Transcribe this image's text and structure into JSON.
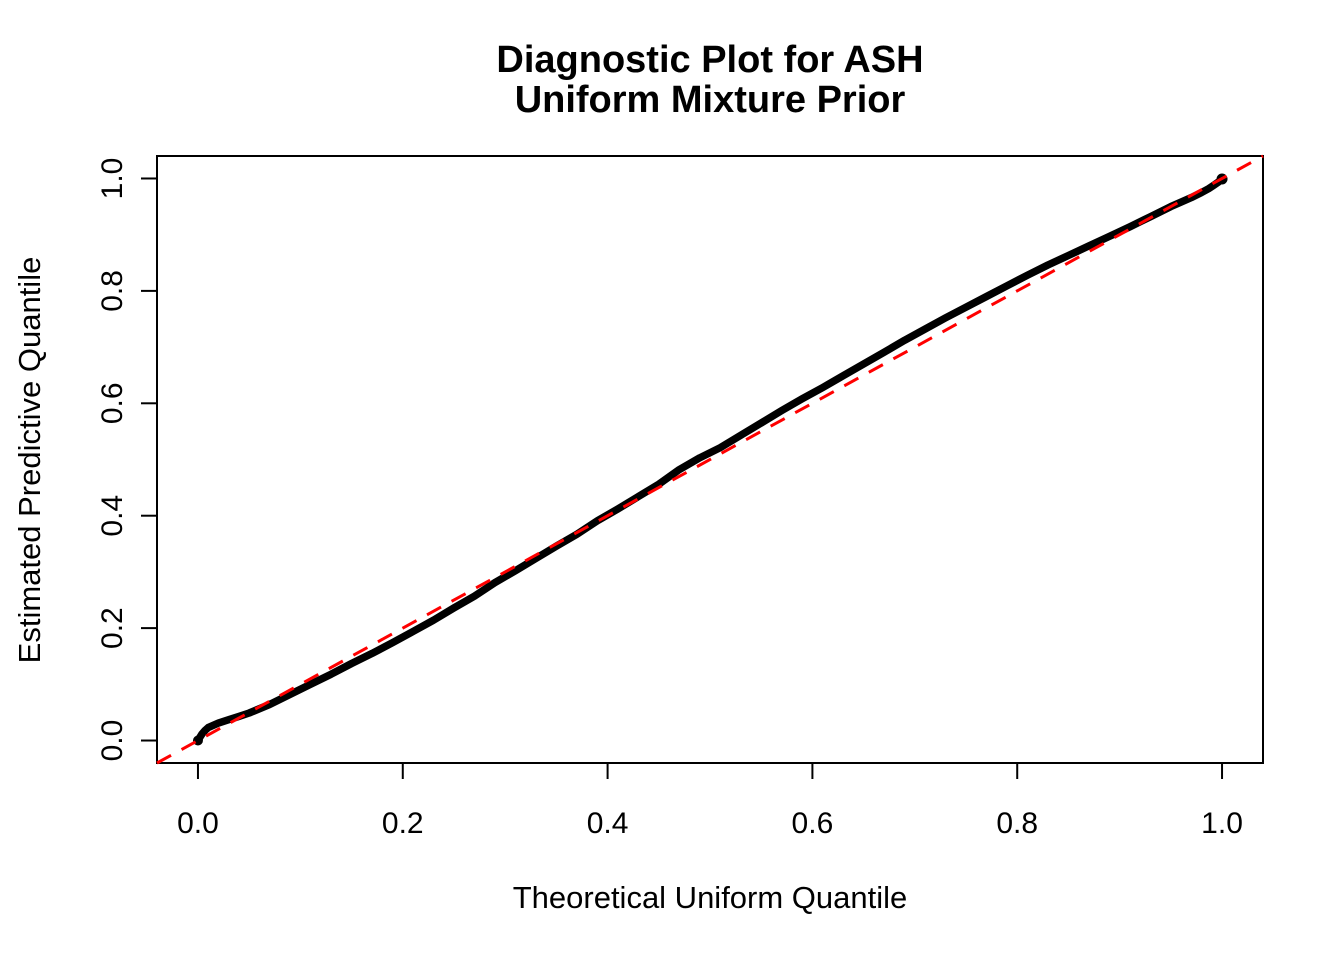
{
  "figure": {
    "background": "#FFFFFF"
  },
  "chart_data": {
    "type": "scatter",
    "title_lines": [
      "Diagnostic Plot for ASH",
      "Uniform Mixture Prior"
    ],
    "xlabel": "Theoretical Uniform Quantile",
    "ylabel": "Estimated Predictive Quantile",
    "xlim": [
      -0.04,
      1.04
    ],
    "ylim": [
      -0.04,
      1.04
    ],
    "grid": false,
    "legend": null,
    "x_ticks": {
      "values": [
        0.0,
        0.2,
        0.4,
        0.6,
        0.8,
        1.0
      ],
      "labels": [
        "0.0",
        "0.2",
        "0.4",
        "0.6",
        "0.8",
        "1.0"
      ]
    },
    "y_ticks": {
      "values": [
        0.0,
        0.2,
        0.4,
        0.6,
        0.8,
        1.0
      ],
      "labels": [
        "0.0",
        "0.2",
        "0.4",
        "0.6",
        "0.8",
        "1.0"
      ]
    },
    "colors": {
      "points": "#000000",
      "reference_line": "#FF0000",
      "axis": "#000000"
    },
    "series": [
      {
        "name": "estimated-predictive-quantiles",
        "type": "points",
        "marker": "filled-circle",
        "color": "#000000",
        "points": [
          [
            0.0,
            0.0
          ],
          [
            0.002,
            0.006
          ],
          [
            0.004,
            0.012
          ],
          [
            0.007,
            0.018
          ],
          [
            0.01,
            0.023
          ],
          [
            0.015,
            0.027
          ],
          [
            0.02,
            0.031
          ],
          [
            0.03,
            0.037
          ],
          [
            0.04,
            0.043
          ],
          [
            0.05,
            0.049
          ],
          [
            0.07,
            0.064
          ],
          [
            0.09,
            0.082
          ],
          [
            0.11,
            0.1
          ],
          [
            0.13,
            0.118
          ],
          [
            0.15,
            0.137
          ],
          [
            0.17,
            0.155
          ],
          [
            0.19,
            0.174
          ],
          [
            0.21,
            0.194
          ],
          [
            0.23,
            0.214
          ],
          [
            0.25,
            0.236
          ],
          [
            0.27,
            0.257
          ],
          [
            0.29,
            0.281
          ],
          [
            0.31,
            0.302
          ],
          [
            0.33,
            0.324
          ],
          [
            0.35,
            0.346
          ],
          [
            0.37,
            0.367
          ],
          [
            0.39,
            0.391
          ],
          [
            0.41,
            0.412
          ],
          [
            0.43,
            0.434
          ],
          [
            0.45,
            0.456
          ],
          [
            0.47,
            0.482
          ],
          [
            0.49,
            0.503
          ],
          [
            0.51,
            0.521
          ],
          [
            0.53,
            0.543
          ],
          [
            0.55,
            0.565
          ],
          [
            0.57,
            0.587
          ],
          [
            0.59,
            0.608
          ],
          [
            0.61,
            0.628
          ],
          [
            0.63,
            0.649
          ],
          [
            0.65,
            0.67
          ],
          [
            0.67,
            0.691
          ],
          [
            0.69,
            0.712
          ],
          [
            0.71,
            0.732
          ],
          [
            0.73,
            0.752
          ],
          [
            0.75,
            0.771
          ],
          [
            0.77,
            0.79
          ],
          [
            0.79,
            0.809
          ],
          [
            0.81,
            0.828
          ],
          [
            0.83,
            0.846
          ],
          [
            0.85,
            0.863
          ],
          [
            0.87,
            0.88
          ],
          [
            0.89,
            0.897
          ],
          [
            0.91,
            0.914
          ],
          [
            0.93,
            0.932
          ],
          [
            0.95,
            0.95
          ],
          [
            0.96,
            0.958
          ],
          [
            0.97,
            0.966
          ],
          [
            0.98,
            0.975
          ],
          [
            0.987,
            0.982
          ],
          [
            0.992,
            0.988
          ],
          [
            0.996,
            0.993
          ],
          [
            0.998,
            0.996
          ],
          [
            1.0,
            0.999
          ]
        ]
      },
      {
        "name": "y-equals-x-reference",
        "type": "line",
        "line_style": "dashed",
        "color": "#FF0000",
        "points": [
          [
            -0.04,
            -0.04
          ],
          [
            1.04,
            1.04
          ]
        ]
      }
    ]
  }
}
